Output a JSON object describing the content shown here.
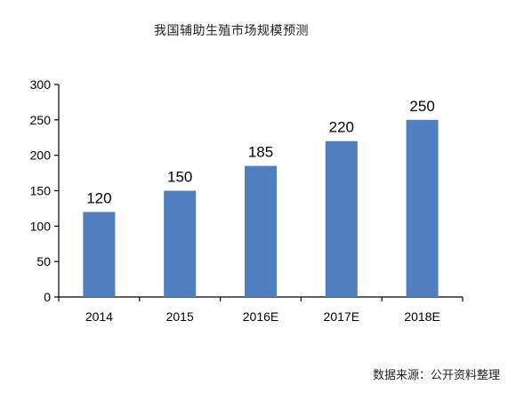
{
  "chart_data": {
    "type": "bar",
    "title": "我国辅助生殖市场规模预测",
    "categories": [
      "2014",
      "2015",
      "2016E",
      "2017E",
      "2018E"
    ],
    "series": [
      {
        "values": [
          120,
          150,
          185,
          220,
          250
        ]
      }
    ],
    "data_labels": [
      "120",
      "150",
      "185",
      "220",
      "250"
    ],
    "ylim": [
      0,
      300
    ],
    "yticks": [
      0,
      50,
      100,
      150,
      200,
      250,
      300
    ],
    "xlabel": "",
    "ylabel": "",
    "grid": false,
    "legend": "none",
    "bar_color": "#4F7FBE"
  },
  "source_note": "数据来源：公开资料整理"
}
